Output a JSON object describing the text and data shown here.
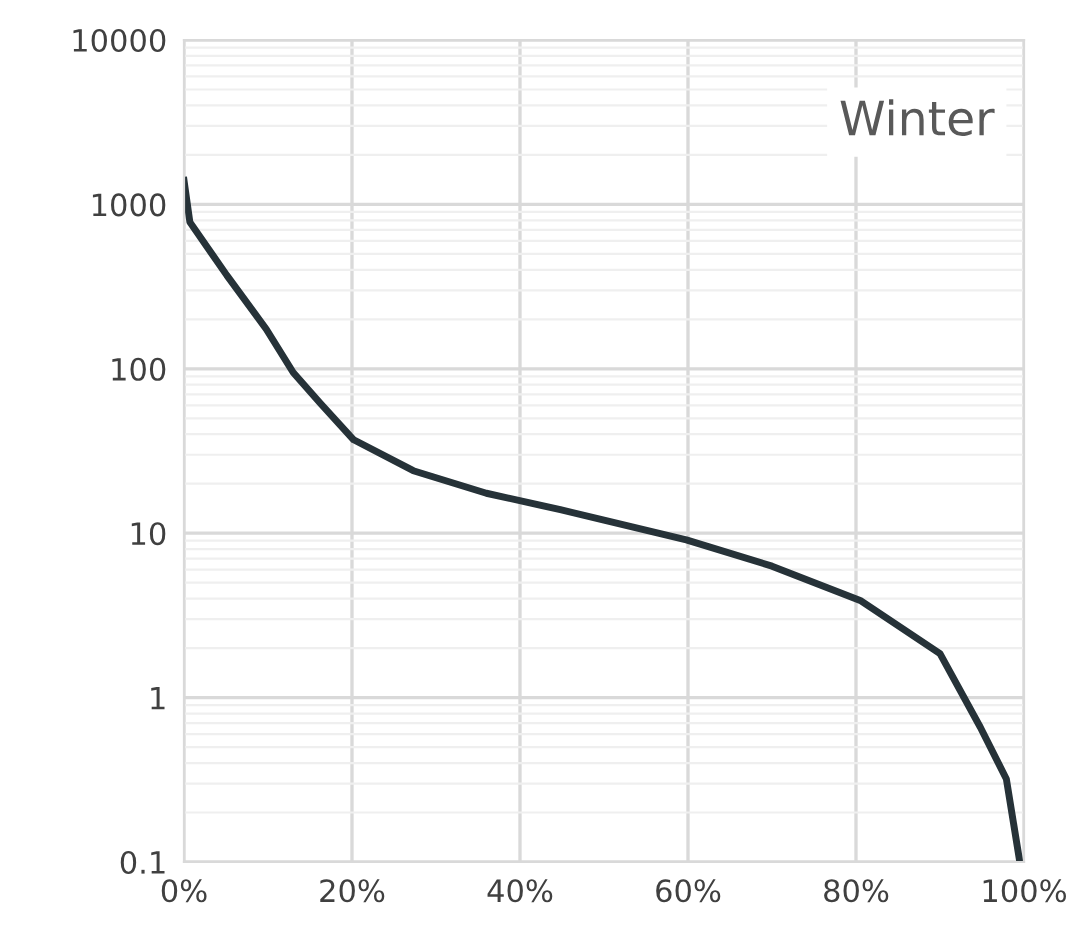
{
  "chart_data": {
    "type": "line",
    "title": "Winter",
    "series": [
      {
        "color": "#263238",
        "x": [
          0,
          0.7,
          5.1,
          9.8,
          13,
          16.2,
          20.2,
          27.3,
          36,
          44.8,
          50,
          59.8,
          70,
          80.5,
          90,
          94.8,
          97.9,
          99.5
        ],
        "values": [
          1400,
          780,
          370,
          174,
          95,
          62,
          37,
          24,
          17.5,
          13.9,
          12,
          9.1,
          6.3,
          3.9,
          1.85,
          0.66,
          0.32,
          0.1
        ]
      }
    ],
    "log": "y",
    "xlim": [
      0,
      100
    ],
    "ylim": [
      0.1,
      10000
    ],
    "xticks": [
      {
        "value": 0,
        "label": "0%"
      },
      {
        "value": 20,
        "label": "20%"
      },
      {
        "value": 40,
        "label": "40%"
      },
      {
        "value": 60,
        "label": "60%"
      },
      {
        "value": 80,
        "label": "80%"
      },
      {
        "value": 100,
        "label": "100%"
      }
    ],
    "yticks": [
      0.1,
      1,
      10,
      100,
      1000,
      10000
    ],
    "grid": true,
    "marker": "none",
    "line_style": "solid"
  }
}
